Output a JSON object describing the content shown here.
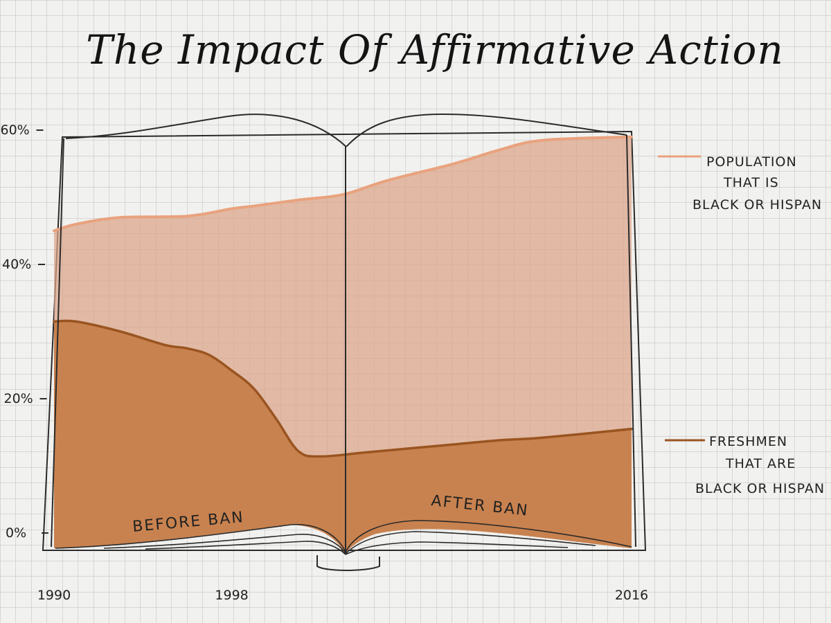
{
  "chart_data": {
    "type": "area",
    "title": "The Impact Of Affirmative Action",
    "x_ticks": [
      "1990",
      "1998",
      "2016"
    ],
    "y_ticks": [
      "0%",
      "20%",
      "40%",
      "60%"
    ],
    "ylim": [
      0,
      62
    ],
    "grid": true,
    "legend_placement": "right",
    "series": [
      {
        "name": "POPULATION THAT IS BLACK OR HISPAN",
        "legend_lines": [
          "POPULATION",
          "THAT IS",
          "BLACK OR HISPAN"
        ],
        "color": "#e9a27e",
        "fill": "#dba387",
        "x": [
          1990,
          1991,
          1993,
          1996,
          1998,
          1999,
          2001,
          2003,
          2005,
          2008,
          2010,
          2012,
          2016
        ],
        "values": [
          45,
          46,
          47,
          47.2,
          48.3,
          48.7,
          49.6,
          50.4,
          52.5,
          55,
          57,
          58.5,
          59
        ]
      },
      {
        "name": "FRESHMEN THAT ARE BLACK OR HISPAN",
        "legend_lines": [
          "FRESHMEN",
          "THAT ARE",
          "BLACK OR HISPAN"
        ],
        "color": "#9a5420",
        "fill": "#c8824f",
        "x": [
          1990,
          1991,
          1993,
          1995,
          1996,
          1997,
          1998,
          1999,
          2000,
          2001,
          2002,
          2004,
          2006,
          2008,
          2010,
          2012,
          2016
        ],
        "values": [
          31.5,
          31.5,
          30,
          28,
          27.5,
          26.5,
          24.2,
          21.5,
          17,
          12.2,
          11.4,
          12,
          12.6,
          13.2,
          13.8,
          14.2,
          15.5
        ]
      }
    ],
    "annotations": [
      "BEFORE BAN",
      "AFTER BAN"
    ]
  }
}
